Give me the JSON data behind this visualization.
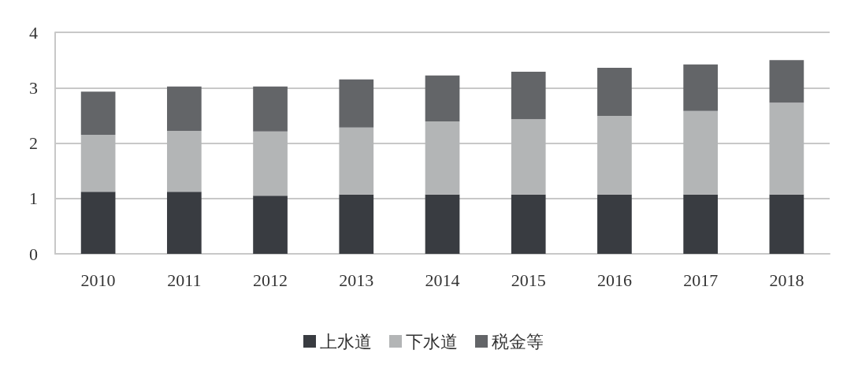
{
  "chart_data": {
    "type": "bar",
    "stacked": true,
    "categories": [
      "2010",
      "2011",
      "2012",
      "2013",
      "2014",
      "2015",
      "2016",
      "2017",
      "2018"
    ],
    "series": [
      {
        "name": "上水道",
        "color": "#393c41",
        "values": [
          1.12,
          1.12,
          1.05,
          1.07,
          1.07,
          1.07,
          1.07,
          1.07,
          1.07
        ]
      },
      {
        "name": "下水道",
        "color": "#b3b5b6",
        "values": [
          1.03,
          1.1,
          1.16,
          1.21,
          1.32,
          1.36,
          1.42,
          1.51,
          1.66
        ]
      },
      {
        "name": "税金等",
        "color": "#636568",
        "values": [
          0.78,
          0.8,
          0.81,
          0.87,
          0.83,
          0.86,
          0.87,
          0.84,
          0.77
        ]
      }
    ],
    "ylim": [
      0,
      4
    ],
    "yticks": [
      0,
      1,
      2,
      3,
      4
    ],
    "grid": "y",
    "legend": "bottom"
  }
}
